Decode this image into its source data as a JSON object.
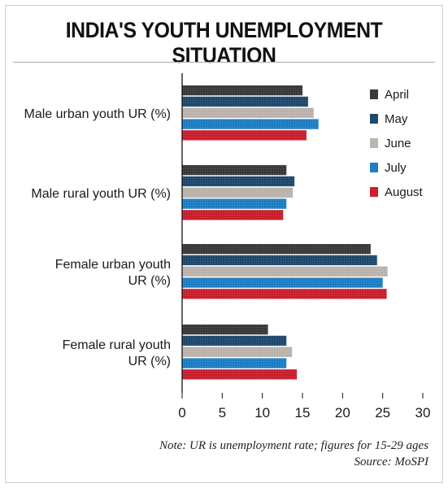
{
  "title": "INDIA'S YOUTH UNEMPLOYMENT SITUATION",
  "note": "Note: UR is unemployment rate; figures for 15-29 ages",
  "source": "Source: MoSPI",
  "chart_data": {
    "type": "bar",
    "orientation": "horizontal",
    "categories": [
      [
        "Male urban youth UR (%)"
      ],
      [
        "Male rural youth UR (%)"
      ],
      [
        "Female urban youth",
        "UR (%)"
      ],
      [
        "Female rural youth",
        "UR (%)"
      ]
    ],
    "series": [
      {
        "name": "April",
        "color": "#3a3a3a",
        "values": [
          15.0,
          13.0,
          23.5,
          10.7
        ]
      },
      {
        "name": "May",
        "color": "#1f4a6e",
        "values": [
          15.7,
          14.0,
          24.3,
          13.0
        ]
      },
      {
        "name": "June",
        "color": "#bdb5ae",
        "values": [
          16.4,
          13.8,
          25.6,
          13.7
        ]
      },
      {
        "name": "July",
        "color": "#1e7fc6",
        "values": [
          17.0,
          13.0,
          25.0,
          13.0
        ]
      },
      {
        "name": "August",
        "color": "#cc1f2e",
        "values": [
          15.5,
          12.6,
          25.5,
          14.3
        ]
      }
    ],
    "xticks": [
      0,
      5,
      10,
      15,
      20,
      25,
      30
    ],
    "xlim": [
      0,
      30
    ],
    "legend": "top-right",
    "grid": false
  }
}
